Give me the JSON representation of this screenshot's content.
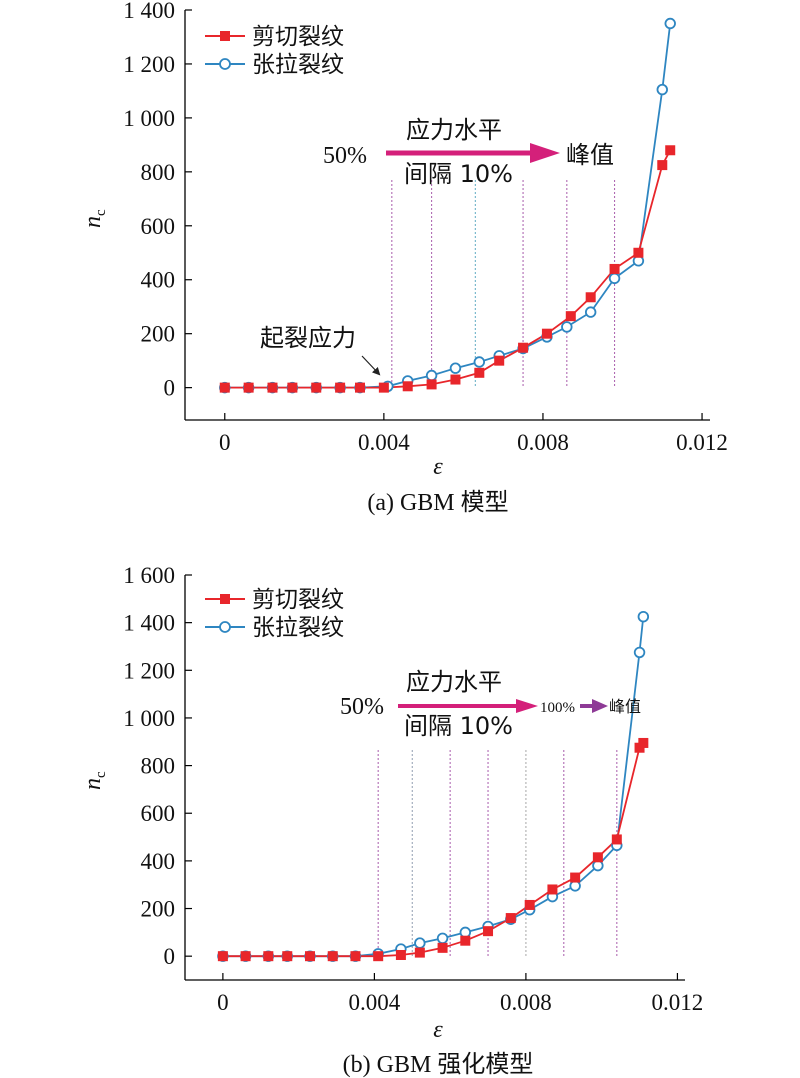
{
  "chart_data": [
    {
      "type": "line",
      "caption": "(a) GBM 模型",
      "xlabel": "ε",
      "ylabel": "n",
      "ylabel_sub": "c",
      "xlim": [
        -0.001,
        0.0122
      ],
      "ylim": [
        -120,
        1400
      ],
      "xticks": [
        0,
        0.004,
        0.008,
        0.012
      ],
      "xtick_labels": [
        "0",
        "0.004",
        "0.008",
        "0.012"
      ],
      "yticks": [
        0,
        200,
        400,
        600,
        800,
        1000,
        1200,
        1400
      ],
      "ytick_labels": [
        "0",
        "200",
        "400",
        "600",
        "800",
        "1 000",
        "1 200",
        "1 400"
      ],
      "grid": false,
      "legend_position": "top-left",
      "series": [
        {
          "name": "剪切裂纹",
          "color": "#e8262b",
          "marker": "square-filled",
          "points": [
            [
              0,
              0
            ],
            [
              0.0006,
              0
            ],
            [
              0.0012,
              0
            ],
            [
              0.0017,
              0
            ],
            [
              0.0023,
              0
            ],
            [
              0.0029,
              0
            ],
            [
              0.0034,
              0
            ],
            [
              0.004,
              0
            ],
            [
              0.0046,
              5
            ],
            [
              0.0052,
              12
            ],
            [
              0.0058,
              30
            ],
            [
              0.0064,
              55
            ],
            [
              0.0069,
              100
            ],
            [
              0.0075,
              148
            ],
            [
              0.0081,
              200
            ],
            [
              0.0087,
              265
            ],
            [
              0.0092,
              335
            ],
            [
              0.0098,
              440
            ],
            [
              0.0104,
              500
            ],
            [
              0.011,
              825
            ],
            [
              0.0112,
              880
            ]
          ]
        },
        {
          "name": "张拉裂纹",
          "color": "#2e86c1",
          "marker": "circle-open",
          "points": [
            [
              0,
              0
            ],
            [
              0.0006,
              0
            ],
            [
              0.0012,
              0
            ],
            [
              0.0017,
              0
            ],
            [
              0.0023,
              0
            ],
            [
              0.0029,
              0
            ],
            [
              0.0034,
              0
            ],
            [
              0.0041,
              5
            ],
            [
              0.0046,
              25
            ],
            [
              0.0052,
              45
            ],
            [
              0.0058,
              72
            ],
            [
              0.0064,
              95
            ],
            [
              0.0069,
              118
            ],
            [
              0.0075,
              145
            ],
            [
              0.0081,
              188
            ],
            [
              0.0086,
              225
            ],
            [
              0.0092,
              280
            ],
            [
              0.0098,
              405
            ],
            [
              0.0104,
              470
            ],
            [
              0.011,
              1105
            ],
            [
              0.0112,
              1350
            ]
          ]
        }
      ],
      "vlines_x": [
        0.0042,
        0.0052,
        0.0063,
        0.0075,
        0.0086,
        0.0098
      ],
      "vline_colors": [
        "#b06ab3",
        "#b06ab3",
        "#6fb3c8",
        "#b06ab3",
        "#b06ab3",
        "#b06ab3"
      ],
      "annotations": {
        "start": "50%",
        "arrow_top": "应力水平",
        "arrow_bottom": "间隔 10%",
        "end": "峰值",
        "crack_init": "起裂应力"
      }
    },
    {
      "type": "line",
      "caption": "(b) GBM 强化模型",
      "xlabel": "ε",
      "ylabel": "n",
      "ylabel_sub": "c",
      "xlim": [
        -0.001,
        0.0122
      ],
      "ylim": [
        -100,
        1600
      ],
      "xticks": [
        0,
        0.004,
        0.008,
        0.012
      ],
      "xtick_labels": [
        "0",
        "0.004",
        "0.008",
        "0.012"
      ],
      "yticks": [
        0,
        200,
        400,
        600,
        800,
        1000,
        1200,
        1400,
        1600
      ],
      "ytick_labels": [
        "0",
        "200",
        "400",
        "600",
        "800",
        "1 000",
        "1 200",
        "1 400",
        "1 600"
      ],
      "grid": false,
      "legend_position": "top-left",
      "series": [
        {
          "name": "剪切裂纹",
          "color": "#e8262b",
          "marker": "square-filled",
          "points": [
            [
              0,
              0
            ],
            [
              0.0006,
              0
            ],
            [
              0.0012,
              0
            ],
            [
              0.0017,
              0
            ],
            [
              0.0023,
              0
            ],
            [
              0.0029,
              0
            ],
            [
              0.0035,
              0
            ],
            [
              0.0041,
              0
            ],
            [
              0.0047,
              5
            ],
            [
              0.0052,
              15
            ],
            [
              0.0058,
              35
            ],
            [
              0.0064,
              65
            ],
            [
              0.007,
              105
            ],
            [
              0.0076,
              160
            ],
            [
              0.0081,
              215
            ],
            [
              0.0087,
              280
            ],
            [
              0.0093,
              330
            ],
            [
              0.0099,
              415
            ],
            [
              0.0104,
              490
            ],
            [
              0.011,
              875
            ],
            [
              0.0111,
              895
            ]
          ]
        },
        {
          "name": "张拉裂纹",
          "color": "#2e86c1",
          "marker": "circle-open",
          "points": [
            [
              0,
              0
            ],
            [
              0.0006,
              0
            ],
            [
              0.0012,
              0
            ],
            [
              0.0017,
              0
            ],
            [
              0.0023,
              0
            ],
            [
              0.0029,
              0
            ],
            [
              0.0035,
              0
            ],
            [
              0.0041,
              10
            ],
            [
              0.0047,
              30
            ],
            [
              0.0052,
              55
            ],
            [
              0.0058,
              75
            ],
            [
              0.0064,
              100
            ],
            [
              0.007,
              125
            ],
            [
              0.0076,
              155
            ],
            [
              0.0081,
              195
            ],
            [
              0.0087,
              250
            ],
            [
              0.0093,
              295
            ],
            [
              0.0099,
              380
            ],
            [
              0.0104,
              465
            ],
            [
              0.011,
              1275
            ],
            [
              0.0111,
              1425
            ]
          ]
        }
      ],
      "vlines_x": [
        0.0041,
        0.005,
        0.006,
        0.007,
        0.008,
        0.009,
        0.0104
      ],
      "vline_colors": [
        "#b06ab3",
        "#9aa6b8",
        "#b06ab3",
        "#b06ab3",
        "#b0b0b0",
        "#b06ab3",
        "#b06ab3"
      ],
      "annotations": {
        "start": "50%",
        "arrow_top": "应力水平",
        "arrow_bottom": "间隔 10%",
        "mid": "100%",
        "end": "峰值"
      }
    }
  ]
}
